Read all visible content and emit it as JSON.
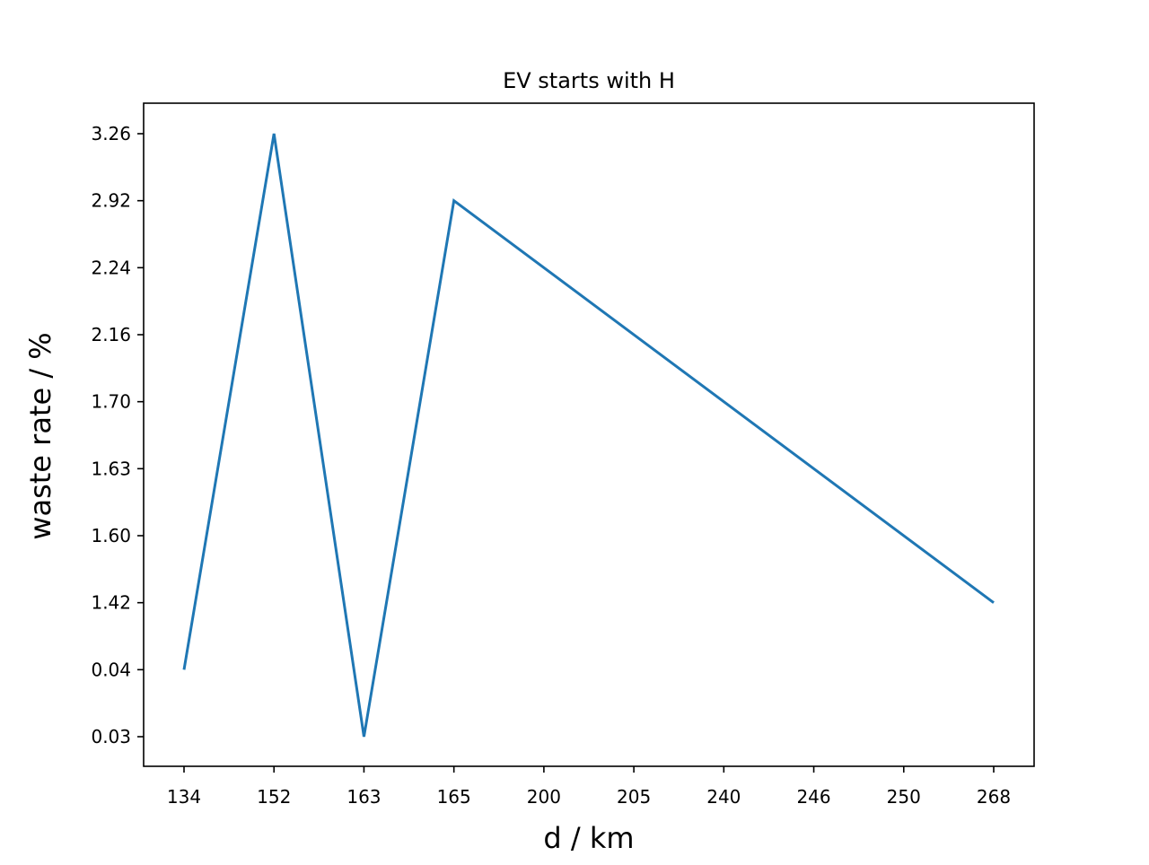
{
  "chart_data": {
    "type": "line",
    "title": "EV starts with H",
    "xlabel": "d / km",
    "ylabel": "waste rate / %",
    "x_scale": "categorical",
    "y_scale": "categorical",
    "x": [
      "134",
      "152",
      "163",
      "165",
      "200",
      "205",
      "240",
      "246",
      "250",
      "268"
    ],
    "y_ticks": [
      "0.03",
      "0.04",
      "1.42",
      "1.60",
      "1.63",
      "1.70",
      "2.16",
      "2.24",
      "2.92",
      "3.26"
    ],
    "series": [
      {
        "color": "#1f77b4",
        "points": [
          {
            "x": "134",
            "y": "0.04"
          },
          {
            "x": "152",
            "y": "3.26"
          },
          {
            "x": "163",
            "y": "0.03"
          },
          {
            "x": "165",
            "y": "2.92"
          },
          {
            "x": "268",
            "y": "1.42"
          }
        ]
      }
    ],
    "grid": false,
    "legend": "none"
  }
}
